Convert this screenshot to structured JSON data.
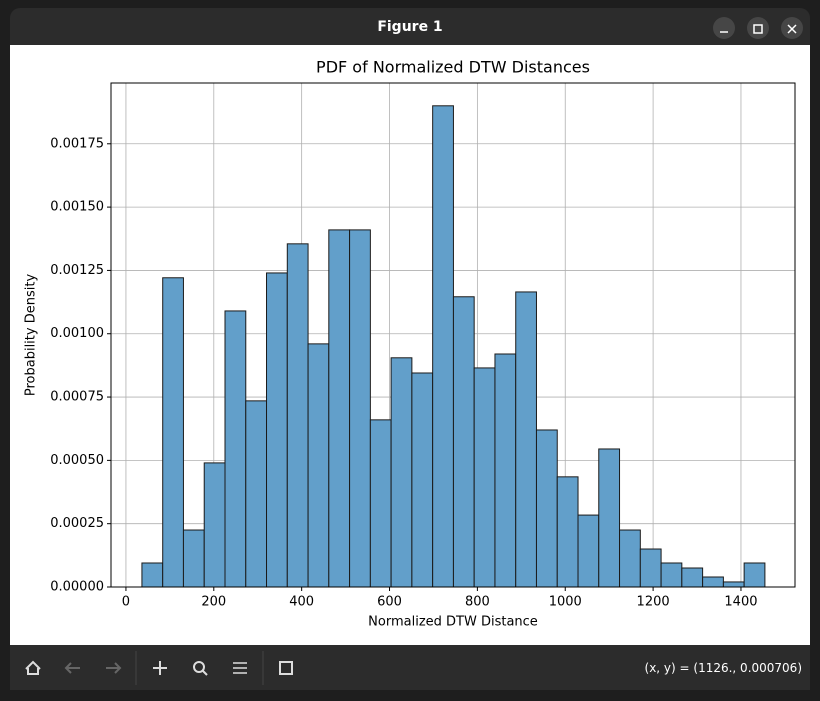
{
  "window": {
    "title": "Figure 1",
    "status": "(x, y) = (1126., 0.000706)"
  },
  "chart_data": {
    "type": "histogram",
    "title": "PDF of Normalized DTW Distances",
    "x_label": "Normalized DTW Distance",
    "y_label": "Probability Density",
    "bins": [
      36.4,
      83.7,
      130.9,
      178.2,
      225.5,
      272.8,
      320.0,
      367.3,
      414.6,
      461.8,
      509.1,
      556.4,
      603.6,
      650.9,
      698.2,
      745.5,
      792.7,
      840.0,
      887.3,
      934.5,
      981.8,
      1029.1,
      1076.3,
      1123.6,
      1170.9,
      1218.2,
      1265.4,
      1312.7,
      1360.0,
      1407.2,
      1454.5
    ],
    "values": [
      9.48e-05,
      0.001221,
      0.000225,
      0.00049,
      0.00109,
      0.000735,
      0.00124,
      0.001355,
      0.00096,
      0.00141,
      0.00141,
      0.00066,
      0.000905,
      0.000845,
      0.0019,
      0.001146,
      0.000865,
      0.00092,
      0.001165,
      0.00062,
      0.000435,
      0.000284,
      0.000545,
      0.000225,
      0.00015,
      9.48e-05,
      7.5e-05,
      3.95e-05,
      2e-05,
      9.48e-05
    ],
    "color": "#629fca",
    "edgecolor": "#1a1a1a",
    "xlim": [
      -34,
      1523
    ],
    "ylim": [
      0,
      0.00199
    ],
    "xticks": [
      0,
      200,
      400,
      600,
      800,
      1000,
      1200,
      1400
    ],
    "yticks": [
      {
        "value": 0,
        "label": "0.00000"
      },
      {
        "value": 0.00025,
        "label": "0.00025"
      },
      {
        "value": 0.0005,
        "label": "0.00050"
      },
      {
        "value": 0.00075,
        "label": "0.00075"
      },
      {
        "value": 0.001,
        "label": "0.00100"
      },
      {
        "value": 0.00125,
        "label": "0.00125"
      },
      {
        "value": 0.0015,
        "label": "0.00150"
      },
      {
        "value": 0.00175,
        "label": "0.00175"
      }
    ],
    "grid": true
  }
}
